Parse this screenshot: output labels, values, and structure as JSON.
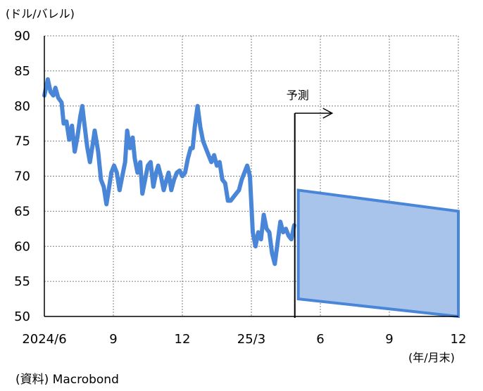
{
  "chart_data": {
    "type": "line",
    "y_unit": "(ドル/バレル)",
    "x_unit": "(年/月末)",
    "source": "(資料) Macrobond",
    "forecast_label": "予測",
    "ylim": [
      50,
      90
    ],
    "yticks": [
      50,
      55,
      60,
      65,
      70,
      75,
      80,
      85,
      90
    ],
    "xticks": [
      "2024/6",
      "9",
      "12",
      "25/3",
      "6",
      "9",
      "12"
    ],
    "grid": true,
    "colors": {
      "line": "#4a86d8",
      "band_fill": "#a8c4ea",
      "band_stroke": "#4a86d8",
      "grid": "#7f7f7f"
    },
    "series": [
      {
        "values": [
          [
            0.0,
            81.5
          ],
          [
            0.05,
            83.8
          ],
          [
            0.09,
            82.0
          ],
          [
            0.13,
            81.5
          ],
          [
            0.16,
            82.6
          ],
          [
            0.2,
            81.2
          ],
          [
            0.25,
            80.5
          ],
          [
            0.28,
            77.5
          ],
          [
            0.32,
            77.8
          ],
          [
            0.36,
            75.2
          ],
          [
            0.4,
            77.2
          ],
          [
            0.44,
            73.5
          ],
          [
            0.48,
            75.6
          ],
          [
            0.52,
            78.5
          ],
          [
            0.55,
            80.0
          ],
          [
            0.58,
            77.5
          ],
          [
            0.62,
            74.2
          ],
          [
            0.66,
            72.0
          ],
          [
            0.7,
            74.5
          ],
          [
            0.73,
            76.5
          ],
          [
            0.78,
            73.5
          ],
          [
            0.82,
            69.5
          ],
          [
            0.86,
            68.5
          ],
          [
            0.9,
            66.0
          ],
          [
            0.94,
            68.5
          ],
          [
            0.97,
            70.5
          ],
          [
            1.01,
            71.5
          ],
          [
            1.05,
            70.5
          ],
          [
            1.09,
            68.0
          ],
          [
            1.13,
            70.0
          ],
          [
            1.17,
            72.0
          ],
          [
            1.2,
            76.5
          ],
          [
            1.24,
            74.0
          ],
          [
            1.28,
            75.5
          ],
          [
            1.31,
            72.5
          ],
          [
            1.35,
            70.5
          ],
          [
            1.39,
            72.0
          ],
          [
            1.42,
            67.5
          ],
          [
            1.46,
            69.5
          ],
          [
            1.5,
            71.5
          ],
          [
            1.54,
            72.0
          ],
          [
            1.58,
            68.5
          ],
          [
            1.62,
            70.5
          ],
          [
            1.65,
            71.5
          ],
          [
            1.69,
            70.0
          ],
          [
            1.73,
            68.0
          ],
          [
            1.77,
            69.5
          ],
          [
            1.8,
            70.5
          ],
          [
            1.84,
            68.0
          ],
          [
            1.88,
            69.5
          ],
          [
            1.92,
            70.5
          ],
          [
            1.96,
            70.8
          ],
          [
            2.0,
            70.0
          ],
          [
            2.04,
            70.5
          ],
          [
            2.08,
            72.5
          ],
          [
            2.12,
            74.0
          ],
          [
            2.15,
            74.0
          ],
          [
            2.18,
            77.0
          ],
          [
            2.22,
            80.0
          ],
          [
            2.26,
            77.0
          ],
          [
            2.3,
            75.0
          ],
          [
            2.34,
            74.0
          ],
          [
            2.38,
            73.0
          ],
          [
            2.42,
            72.0
          ],
          [
            2.46,
            73.0
          ],
          [
            2.5,
            71.5
          ],
          [
            2.54,
            72.0
          ],
          [
            2.58,
            69.5
          ],
          [
            2.62,
            69.0
          ],
          [
            2.66,
            66.5
          ],
          [
            2.7,
            66.5
          ],
          [
            2.74,
            67.0
          ],
          [
            2.78,
            67.5
          ],
          [
            2.82,
            68.0
          ],
          [
            2.86,
            69.5
          ],
          [
            2.9,
            70.5
          ],
          [
            2.94,
            71.5
          ],
          [
            2.98,
            70.0
          ],
          [
            3.02,
            62.0
          ],
          [
            3.06,
            60.0
          ],
          [
            3.1,
            62.0
          ],
          [
            3.14,
            61.0
          ],
          [
            3.18,
            64.5
          ],
          [
            3.22,
            62.5
          ],
          [
            3.26,
            62.0
          ],
          [
            3.3,
            59.0
          ],
          [
            3.34,
            57.5
          ],
          [
            3.38,
            60.5
          ],
          [
            3.42,
            63.5
          ],
          [
            3.46,
            62.0
          ],
          [
            3.5,
            62.5
          ],
          [
            3.54,
            61.5
          ],
          [
            3.58,
            61.0
          ],
          [
            3.62,
            63.0
          ]
        ]
      }
    ],
    "forecast_band": {
      "x_start": 3.68,
      "x_end": 6.0,
      "upper": [
        68.0,
        65.0
      ],
      "lower": [
        52.5,
        50.0
      ]
    },
    "forecast_start_x": 3.65
  }
}
